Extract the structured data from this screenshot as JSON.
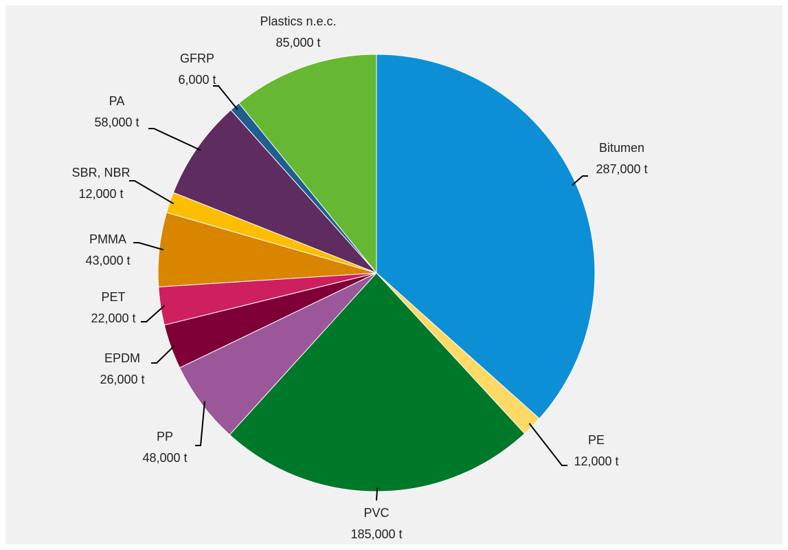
{
  "chart_data": {
    "type": "pie",
    "categories": [
      "Bitumen",
      "PE",
      "PVC",
      "PP",
      "EPDM",
      "PET",
      "PMMA",
      "SBR, NBR",
      "PA",
      "GFRP",
      "Plastics n.e.c."
    ],
    "values": [
      287000,
      12000,
      185000,
      48000,
      26000,
      22000,
      43000,
      12000,
      58000,
      6000,
      85000
    ],
    "value_labels": [
      "287,000 t",
      "12,000 t",
      "185,000 t",
      "48,000 t",
      "26,000 t",
      "22,000 t",
      "43,000 t",
      "12,000 t",
      "58,000 t",
      "6,000 t",
      "85,000 t"
    ],
    "colors": [
      "#0d8fd6",
      "#ffd966",
      "#00782a",
      "#9c579a",
      "#7f0036",
      "#ce1f5e",
      "#d98500",
      "#fdbd00",
      "#5f2c5f",
      "#1f5f8f",
      "#66b832"
    ]
  }
}
